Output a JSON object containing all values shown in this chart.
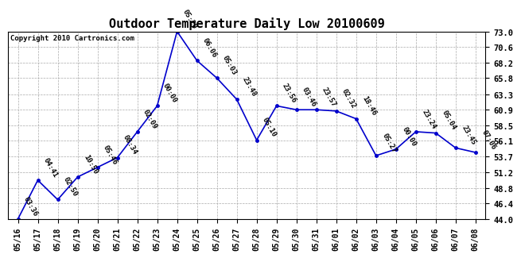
{
  "title": "Outdoor Temperature Daily Low 20100609",
  "copyright": "Copyright 2010 Cartronics.com",
  "x_labels": [
    "05/16",
    "05/17",
    "05/18",
    "05/19",
    "05/20",
    "05/21",
    "05/22",
    "05/23",
    "05/24",
    "05/25",
    "05/26",
    "05/27",
    "05/28",
    "05/29",
    "05/30",
    "05/31",
    "06/01",
    "06/02",
    "06/03",
    "06/04",
    "06/05",
    "06/06",
    "06/07",
    "06/08"
  ],
  "y_values": [
    44.0,
    50.0,
    47.0,
    50.5,
    52.0,
    53.5,
    57.5,
    61.5,
    73.0,
    68.5,
    65.8,
    62.5,
    56.2,
    61.5,
    60.9,
    60.9,
    60.7,
    59.5,
    53.8,
    54.8,
    57.5,
    57.3,
    55.0,
    54.3
  ],
  "point_labels": [
    "03:36",
    "04:41",
    "02:50",
    "10:50",
    "05:46",
    "08:34",
    "02:09",
    "00:00",
    "05:20",
    "06:06",
    "05:03",
    "23:48",
    "05:10",
    "23:56",
    "03:46",
    "23:57",
    "02:32",
    "18:46",
    "05:27",
    "00:00",
    "23:24",
    "05:04",
    "23:45",
    "07:06"
  ],
  "line_color": "#0000CC",
  "marker_color": "#0000CC",
  "background_color": "#ffffff",
  "grid_color": "#aaaaaa",
  "ylim": [
    44.0,
    73.0
  ],
  "yticks": [
    44.0,
    46.4,
    48.8,
    51.2,
    53.7,
    56.1,
    58.5,
    60.9,
    63.3,
    65.8,
    68.2,
    70.6,
    73.0
  ],
  "label_fontsize": 6.5,
  "title_fontsize": 11,
  "copyright_fontsize": 6.5
}
